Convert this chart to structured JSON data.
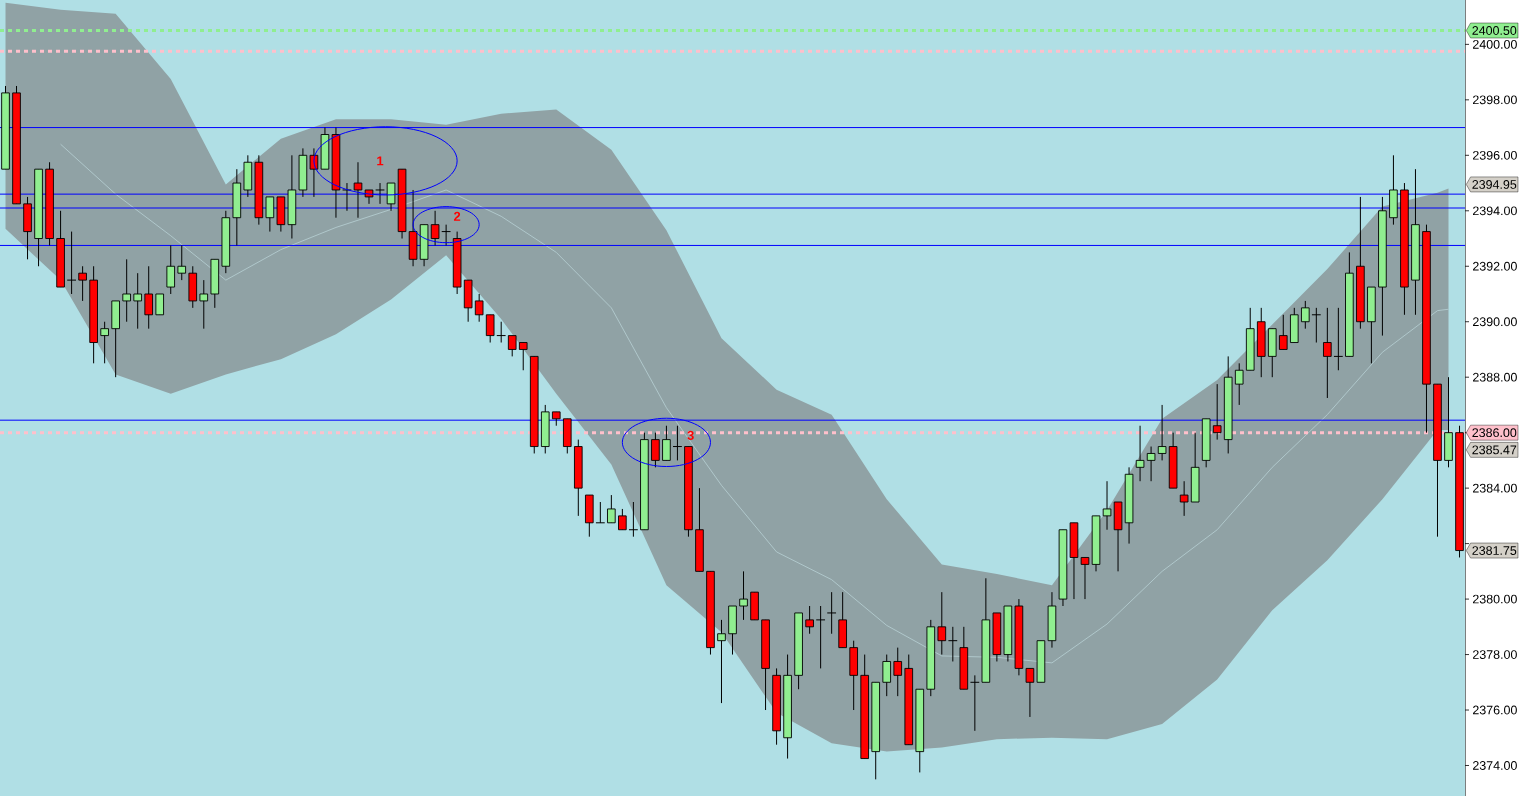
{
  "chart_data": {
    "type": "candlestick",
    "categories": [
      null,
      null,
      null,
      null,
      null,
      null,
      null,
      null,
      null,
      null,
      null,
      null,
      null,
      null,
      null,
      null,
      null,
      null,
      null,
      null,
      null,
      null,
      null,
      null,
      null,
      null,
      null,
      null,
      null,
      null,
      null,
      null,
      null,
      null,
      null,
      null,
      null,
      null,
      null,
      null,
      null,
      null,
      null,
      null,
      null,
      null,
      null,
      null,
      null,
      null,
      null,
      null,
      null,
      null,
      null,
      null,
      null,
      null,
      null,
      null,
      null,
      null,
      null,
      null,
      null,
      null,
      null,
      null,
      null,
      null,
      null,
      null,
      null,
      null,
      null,
      null,
      null,
      null,
      null,
      null,
      null,
      null,
      null,
      null,
      null,
      null,
      null,
      null,
      null,
      null,
      null,
      null,
      null,
      null,
      null,
      null,
      null,
      null,
      null,
      null,
      null,
      null,
      null,
      null,
      null,
      null,
      null,
      null,
      null,
      null,
      null,
      null,
      null,
      null,
      null,
      null,
      null,
      null,
      null,
      null,
      null,
      null,
      null,
      null,
      null,
      null,
      null,
      null,
      null,
      null,
      null,
      null,
      null
    ],
    "ohlc": [
      [
        2395.5,
        2398.5,
        2395.5,
        2398.25
      ],
      [
        2398.25,
        2398.5,
        2394.25,
        2394.25
      ],
      [
        2394.25,
        2394.5,
        2392.25,
        2393.25
      ],
      [
        2393.0,
        2395.5,
        2392.0,
        2395.5
      ],
      [
        2395.5,
        2395.75,
        2392.75,
        2393.0
      ],
      [
        2393.0,
        2394.0,
        2391.25,
        2391.25
      ],
      [
        2391.5,
        2393.25,
        2391.0,
        2391.5
      ],
      [
        2391.75,
        2392.0,
        2390.75,
        2391.5
      ],
      [
        2391.5,
        2392.0,
        2388.5,
        2389.25
      ],
      [
        2389.5,
        2390.0,
        2388.5,
        2389.75
      ],
      [
        2389.75,
        2390.75,
        2388.0,
        2390.75
      ],
      [
        2390.75,
        2392.25,
        2390.0,
        2391.0
      ],
      [
        2390.75,
        2391.75,
        2389.75,
        2391.0
      ],
      [
        2391.0,
        2392.0,
        2389.75,
        2390.25
      ],
      [
        2390.25,
        2391.0,
        2390.25,
        2391.0
      ],
      [
        2391.25,
        2392.75,
        2391.0,
        2392.0
      ],
      [
        2391.75,
        2392.75,
        2391.5,
        2392.0
      ],
      [
        2391.75,
        2392.0,
        2390.5,
        2390.75
      ],
      [
        2390.75,
        2391.5,
        2389.75,
        2391.0
      ],
      [
        2391.0,
        2392.25,
        2390.5,
        2392.25
      ],
      [
        2392.0,
        2394.0,
        2391.75,
        2393.75
      ],
      [
        2393.75,
        2395.5,
        2392.75,
        2395.0
      ],
      [
        2394.75,
        2396.0,
        2394.5,
        2395.75
      ],
      [
        2395.75,
        2396.0,
        2393.5,
        2393.75
      ],
      [
        2393.75,
        2394.5,
        2393.25,
        2394.5
      ],
      [
        2394.5,
        2394.5,
        2393.25,
        2393.5
      ],
      [
        2393.5,
        2396.0,
        2393.0,
        2394.75
      ],
      [
        2394.75,
        2396.25,
        2394.5,
        2396.0
      ],
      [
        2396.0,
        2396.25,
        2394.5,
        2395.5
      ],
      [
        2395.5,
        2397.0,
        2395.5,
        2396.75
      ],
      [
        2396.75,
        2397.0,
        2393.75,
        2394.75
      ],
      [
        2394.75,
        2395.0,
        2394.0,
        2394.75
      ],
      [
        2395.0,
        2395.75,
        2393.75,
        2394.75
      ],
      [
        2394.75,
        2394.75,
        2394.25,
        2394.5
      ],
      [
        2394.75,
        2395.0,
        2394.25,
        2394.75
      ],
      [
        2394.25,
        2395.0,
        2394.0,
        2395.0
      ],
      [
        2395.5,
        2395.5,
        2393.0,
        2393.25
      ],
      [
        2393.25,
        2394.75,
        2392.0,
        2392.25
      ],
      [
        2392.25,
        2393.5,
        2392.0,
        2393.5
      ],
      [
        2393.5,
        2394.0,
        2392.75,
        2393.0
      ],
      [
        2393.25,
        2393.5,
        2392.75,
        2393.25
      ],
      [
        2393.0,
        2393.25,
        2391.0,
        2391.25
      ],
      [
        2391.5,
        2391.5,
        2390.0,
        2390.5
      ],
      [
        2390.75,
        2391.0,
        2390.0,
        2390.25
      ],
      [
        2390.25,
        2390.25,
        2389.25,
        2389.5
      ],
      [
        2389.5,
        2390.0,
        2389.25,
        2389.5
      ],
      [
        2389.5,
        2389.5,
        2388.75,
        2389.0
      ],
      [
        2389.25,
        2389.25,
        2388.25,
        2389.0
      ],
      [
        2388.75,
        2388.75,
        2385.25,
        2385.5
      ],
      [
        2385.5,
        2387.0,
        2385.25,
        2386.75
      ],
      [
        2386.75,
        2386.75,
        2386.25,
        2386.5
      ],
      [
        2386.5,
        2386.5,
        2385.25,
        2385.5
      ],
      [
        2385.5,
        2385.75,
        2383.0,
        2384.0
      ],
      [
        2383.75,
        2383.75,
        2382.25,
        2382.75
      ],
      [
        2382.75,
        2383.5,
        2382.75,
        2382.75
      ],
      [
        2382.75,
        2383.75,
        2382.75,
        2383.25
      ],
      [
        2383.0,
        2383.25,
        2382.5,
        2382.5
      ],
      [
        2382.5,
        2383.5,
        2382.25,
        2382.5
      ],
      [
        2382.5,
        2386.0,
        2382.5,
        2385.75
      ],
      [
        2385.75,
        2386.0,
        2384.75,
        2385.0
      ],
      [
        2385.0,
        2386.25,
        2385.0,
        2385.75
      ],
      [
        2385.5,
        2386.25,
        2385.0,
        2385.5
      ],
      [
        2385.5,
        2385.5,
        2382.25,
        2382.5
      ],
      [
        2382.5,
        2384.0,
        2381.0,
        2381.0
      ],
      [
        2381.0,
        2381.0,
        2378.0,
        2378.25
      ],
      [
        2378.5,
        2379.25,
        2376.25,
        2378.75
      ],
      [
        2378.75,
        2379.75,
        2378.0,
        2379.75
      ],
      [
        2379.75,
        2381.0,
        2379.25,
        2380.0
      ],
      [
        2380.25,
        2380.25,
        2379.25,
        2379.25
      ],
      [
        2379.25,
        2379.25,
        2376.0,
        2377.5
      ],
      [
        2377.25,
        2377.5,
        2374.75,
        2375.25
      ],
      [
        2375.0,
        2378.0,
        2374.25,
        2377.25
      ],
      [
        2377.25,
        2379.5,
        2376.75,
        2379.5
      ],
      [
        2379.25,
        2379.75,
        2378.75,
        2379.0
      ],
      [
        2379.25,
        2379.75,
        2377.5,
        2379.25
      ],
      [
        2379.5,
        2380.25,
        2378.75,
        2379.5
      ],
      [
        2379.25,
        2380.25,
        2378.25,
        2378.25
      ],
      [
        2378.25,
        2378.5,
        2376.0,
        2377.25
      ],
      [
        2377.25,
        2378.0,
        2374.25,
        2374.25
      ],
      [
        2374.5,
        2377.0,
        2373.5,
        2377.0
      ],
      [
        2377.0,
        2378.0,
        2376.5,
        2377.75
      ],
      [
        2377.75,
        2378.25,
        2376.5,
        2377.25
      ],
      [
        2377.5,
        2378.0,
        2374.75,
        2374.75
      ],
      [
        2374.5,
        2376.75,
        2373.75,
        2376.75
      ],
      [
        2376.75,
        2379.25,
        2376.5,
        2379.0
      ],
      [
        2379.0,
        2380.25,
        2378.0,
        2378.5
      ],
      [
        2378.5,
        2379.0,
        2377.75,
        2378.5
      ],
      [
        2378.25,
        2379.0,
        2376.75,
        2376.75
      ],
      [
        2377.0,
        2377.25,
        2375.25,
        2377.0
      ],
      [
        2377.0,
        2380.75,
        2377.0,
        2379.25
      ],
      [
        2379.5,
        2379.5,
        2377.75,
        2378.0
      ],
      [
        2378.0,
        2379.75,
        2377.75,
        2379.75
      ],
      [
        2379.75,
        2380.0,
        2377.25,
        2377.5
      ],
      [
        2377.5,
        2377.5,
        2375.75,
        2377.0
      ],
      [
        2377.0,
        2378.5,
        2377.0,
        2378.5
      ],
      [
        2378.5,
        2380.25,
        2378.25,
        2379.75
      ],
      [
        2380.0,
        2382.5,
        2379.75,
        2382.5
      ],
      [
        2382.75,
        2382.75,
        2380.0,
        2381.5
      ],
      [
        2381.5,
        2381.5,
        2380.0,
        2381.25
      ],
      [
        2381.25,
        2383.0,
        2381.0,
        2383.0
      ],
      [
        2383.0,
        2384.25,
        2382.5,
        2383.25
      ],
      [
        2383.5,
        2383.5,
        2381.0,
        2382.5
      ],
      [
        2382.75,
        2384.75,
        2382.0,
        2384.5
      ],
      [
        2384.75,
        2386.25,
        2384.25,
        2385.0
      ],
      [
        2385.0,
        2385.5,
        2384.25,
        2385.25
      ],
      [
        2385.25,
        2387.0,
        2385.0,
        2385.5
      ],
      [
        2385.5,
        2386.0,
        2384.0,
        2384.0
      ],
      [
        2383.75,
        2384.25,
        2383.0,
        2383.5
      ],
      [
        2383.5,
        2386.0,
        2383.5,
        2384.75
      ],
      [
        2385.0,
        2386.5,
        2384.75,
        2386.5
      ],
      [
        2386.25,
        2387.75,
        2385.75,
        2386.0
      ],
      [
        2385.75,
        2388.75,
        2385.25,
        2388.0
      ],
      [
        2387.75,
        2388.5,
        2387.0,
        2388.25
      ],
      [
        2388.25,
        2390.5,
        2388.25,
        2389.75
      ],
      [
        2390.0,
        2390.5,
        2388.0,
        2388.75
      ],
      [
        2388.75,
        2389.75,
        2388.0,
        2389.75
      ],
      [
        2389.5,
        2390.25,
        2389.0,
        2389.0
      ],
      [
        2389.25,
        2390.5,
        2389.25,
        2390.25
      ],
      [
        2390.0,
        2390.75,
        2389.75,
        2390.5
      ],
      [
        2390.25,
        2390.5,
        2389.25,
        2390.25
      ],
      [
        2389.25,
        2390.5,
        2387.25,
        2388.75
      ],
      [
        2388.75,
        2390.5,
        2388.25,
        2388.75
      ],
      [
        2388.75,
        2392.5,
        2388.75,
        2391.75
      ],
      [
        2392.0,
        2394.5,
        2389.75,
        2390.0
      ],
      [
        2390.0,
        2391.25,
        2388.5,
        2391.25
      ],
      [
        2391.25,
        2394.5,
        2389.5,
        2394.0
      ],
      [
        2393.75,
        2396.0,
        2393.5,
        2394.75
      ],
      [
        2394.75,
        2395.0,
        2390.25,
        2391.25
      ],
      [
        2391.5,
        2395.5,
        2390.25,
        2393.5
      ],
      [
        2393.25,
        2393.5,
        2386.0,
        2387.75
      ],
      [
        2387.75,
        2387.75,
        2382.25,
        2385.0
      ],
      [
        2385.0,
        2388.0,
        2384.75,
        2386.0
      ],
      [
        2386.0,
        2386.25,
        2381.5,
        2381.75
      ]
    ],
    "series": [
      {
        "type": "line",
        "color": "#b8d0d4",
        "values": [
          null,
          null,
          null,
          null,
          null,
          2396.4,
          null,
          null,
          null,
          null,
          2394.6,
          null,
          null,
          null,
          null,
          2393.1,
          null,
          null,
          null,
          null,
          2391.5,
          null,
          null,
          null,
          null,
          2392.6,
          null,
          null,
          null,
          null,
          2393.4,
          null,
          null,
          null,
          null,
          2394.05,
          null,
          null,
          null,
          null,
          2394.75,
          null,
          null,
          null,
          null,
          2393.8,
          null,
          null,
          null,
          null,
          2392.5,
          null,
          null,
          null,
          null,
          2390.5,
          null,
          null,
          null,
          null,
          2386.9,
          null,
          null,
          null,
          null,
          2384.1,
          null,
          null,
          null,
          null,
          2381.7,
          null,
          null,
          null,
          null,
          2380.7,
          null,
          null,
          null,
          null,
          2379.05,
          null,
          null,
          null,
          null,
          2377.95,
          null,
          null,
          null,
          null,
          2377.9,
          null,
          null,
          null,
          null,
          2377.7,
          null,
          null,
          null,
          null,
          2379.1,
          null,
          null,
          null,
          null,
          2381.0,
          null,
          null,
          null,
          null,
          2382.5,
          null,
          null,
          null,
          null,
          2384.75,
          null,
          null,
          null,
          null,
          2386.65,
          null,
          null,
          null,
          null,
          2388.9,
          null,
          null,
          null,
          null,
          2390.4,
          2390.45,
          null
        ],
        "lower": [
          2393.35,
          null,
          null,
          null,
          null,
          2391.5,
          null,
          null,
          null,
          null,
          2388.1,
          null,
          null,
          null,
          null,
          2387.4,
          null,
          null,
          null,
          null,
          2388.1,
          null,
          null,
          null,
          null,
          2388.65,
          null,
          null,
          null,
          null,
          2389.55,
          null,
          null,
          null,
          null,
          2390.8,
          null,
          null,
          null,
          null,
          2392.4,
          null,
          null,
          null,
          null,
          2390.1,
          null,
          null,
          null,
          null,
          2387.4,
          null,
          null,
          null,
          null,
          2384.85,
          null,
          null,
          null,
          null,
          2380.5,
          null,
          null,
          null,
          null,
          2378.8,
          null,
          null,
          null,
          null,
          2375.9,
          null,
          null,
          null,
          null,
          2374.8,
          null,
          null,
          null,
          null,
          2374.5,
          null,
          null,
          null,
          null,
          2374.65,
          null,
          null,
          null,
          null,
          2374.95,
          null,
          null,
          null,
          null,
          2375.0,
          null,
          null,
          null,
          null,
          2374.95,
          null,
          null,
          null,
          null,
          2375.5,
          null,
          null,
          null,
          null,
          2377.1,
          null,
          null,
          null,
          null,
          2379.6,
          null,
          null,
          null,
          null,
          2381.4,
          null,
          null,
          null,
          null,
          2383.6,
          null,
          null,
          null,
          null,
          2386.1,
          2386.1,
          null
        ],
        "upper": [
          2401.5,
          null,
          null,
          null,
          null,
          2401.25,
          null,
          null,
          null,
          null,
          2401.1,
          null,
          null,
          null,
          null,
          2398.75,
          null,
          null,
          null,
          null,
          2394.95,
          null,
          null,
          null,
          null,
          2396.6,
          null,
          null,
          null,
          null,
          2397.3,
          null,
          null,
          null,
          null,
          2397.3,
          null,
          null,
          null,
          null,
          2397.1,
          null,
          null,
          null,
          null,
          2397.5,
          null,
          null,
          null,
          null,
          2397.65,
          null,
          null,
          null,
          null,
          2396.2,
          null,
          null,
          null,
          null,
          2393.3,
          null,
          null,
          null,
          null,
          2389.4,
          null,
          null,
          null,
          null,
          2387.55,
          null,
          null,
          null,
          null,
          2386.65,
          null,
          null,
          null,
          null,
          2383.6,
          null,
          null,
          null,
          null,
          2381.25,
          null,
          null,
          null,
          null,
          2380.9,
          null,
          null,
          null,
          null,
          2380.5,
          null,
          null,
          null,
          null,
          2383.2,
          null,
          null,
          null,
          null,
          2386.5,
          null,
          null,
          null,
          null,
          2387.9,
          null,
          null,
          null,
          null,
          2389.9,
          null,
          null,
          null,
          null,
          2391.9,
          null,
          null,
          null,
          null,
          2394.15,
          null,
          null,
          null,
          null,
          2394.65,
          2394.8,
          null
        ]
      }
    ],
    "ylim": [
      2372.9,
      2401.6
    ],
    "yticks": [
      {
        "value": 2374,
        "label": "2374.00"
      },
      {
        "value": 2376,
        "label": "2376.00"
      },
      {
        "value": 2378,
        "label": "2378.00"
      },
      {
        "value": 2380,
        "label": "2380.00"
      },
      {
        "value": 2382,
        "label": null
      },
      {
        "value": 2384,
        "label": "2384.00"
      },
      {
        "value": 2386,
        "label": null
      },
      {
        "value": 2388,
        "label": "2388.00"
      },
      {
        "value": 2390,
        "label": "2390.00"
      },
      {
        "value": 2392,
        "label": "2392.00"
      },
      {
        "value": 2394,
        "label": "2394.00"
      },
      {
        "value": 2396,
        "label": "2396.00"
      },
      {
        "value": 2398,
        "label": "2398.00"
      },
      {
        "value": 2400,
        "label": "2400.00"
      }
    ],
    "tick_labels": "y",
    "ref_lines": [
      {
        "axis": "y",
        "value": 2397.0,
        "color": "#0000ff",
        "line_style": "solid"
      },
      {
        "axis": "y",
        "value": 2394.6,
        "color": "#0000ff",
        "line_style": "solid"
      },
      {
        "axis": "y",
        "value": 2394.1,
        "color": "#0000ff",
        "line_style": "solid"
      },
      {
        "axis": "y",
        "value": 2392.75,
        "color": "#0000ff",
        "line_style": "solid"
      },
      {
        "axis": "y",
        "value": 2386.45,
        "color": "#0000ff",
        "line_style": "solid"
      },
      {
        "axis": "y",
        "value": 2399.75,
        "color": "#ffc0cb",
        "line_style": "dotted"
      },
      {
        "axis": "y",
        "value": 2400.5,
        "label": "2400.50",
        "color": "#90ee90",
        "line_style": "dotted"
      },
      {
        "axis": "y",
        "value": 2386.0,
        "label": "2386.00",
        "color": "#ffc0cb",
        "line_style": "dotted"
      }
    ],
    "annotations": [
      "1",
      "2",
      "3",
      "2394.95",
      "2385.47",
      "2381.75"
    ]
  }
}
